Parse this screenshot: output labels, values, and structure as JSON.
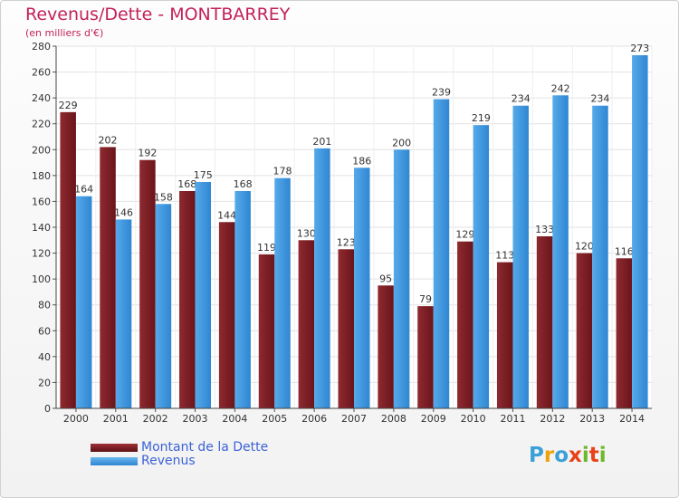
{
  "title": "Revenus/Dette - MONTBARREY",
  "subtitle": "(en milliers d'€)",
  "logo": {
    "text": "Proxiti",
    "letters": [
      "P",
      "r",
      "o",
      "x",
      "i",
      "t",
      "i"
    ],
    "colors": [
      "#3aa0d8",
      "#f0a20a",
      "#3aa0d8",
      "#e8421a",
      "#6bb82a",
      "#e8421a",
      "#6bb82a"
    ]
  },
  "chart_data": {
    "type": "bar",
    "title": "Revenus/Dette - MONTBARREY",
    "subtitle": "(en milliers d'€)",
    "categories": [
      "2000",
      "2001",
      "2002",
      "2003",
      "2004",
      "2005",
      "2006",
      "2007",
      "2008",
      "2009",
      "2010",
      "2011",
      "2012",
      "2013",
      "2014"
    ],
    "series": [
      {
        "name": "Montant de la Dette",
        "color": "#7a1c22",
        "values": [
          229,
          202,
          192,
          168,
          144,
          119,
          130,
          123,
          95,
          79,
          129,
          113,
          133,
          120,
          116
        ]
      },
      {
        "name": "Revenus",
        "color": "#3e97e0",
        "values": [
          164,
          146,
          158,
          175,
          168,
          178,
          201,
          186,
          200,
          239,
          219,
          234,
          242,
          234,
          273
        ]
      }
    ],
    "ylim": [
      0,
      280
    ],
    "yticks": [
      0,
      20,
      40,
      60,
      80,
      100,
      120,
      140,
      160,
      180,
      200,
      220,
      240,
      260,
      280
    ],
    "grid": true,
    "legend_position": "bottom-left"
  }
}
